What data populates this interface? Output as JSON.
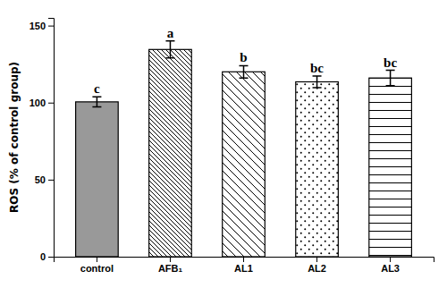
{
  "chart_data": {
    "type": "bar",
    "categories": [
      "control",
      "AFB₁",
      "AL1",
      "AL2",
      "AL3"
    ],
    "values": [
      100.5,
      134.5,
      120.0,
      113.5,
      116.0
    ],
    "errors": [
      3.2,
      5.5,
      4.0,
      3.8,
      5.0
    ],
    "annotations": [
      "c",
      "a",
      "b",
      "bc",
      "bc"
    ],
    "colors": [
      "#999999",
      "white",
      "white",
      "white",
      "white"
    ],
    "ylabel": "ROS (% of control group)",
    "ylim": [
      0,
      155
    ],
    "yticks": [
      0,
      50,
      100,
      150
    ],
    "grid": false
  }
}
